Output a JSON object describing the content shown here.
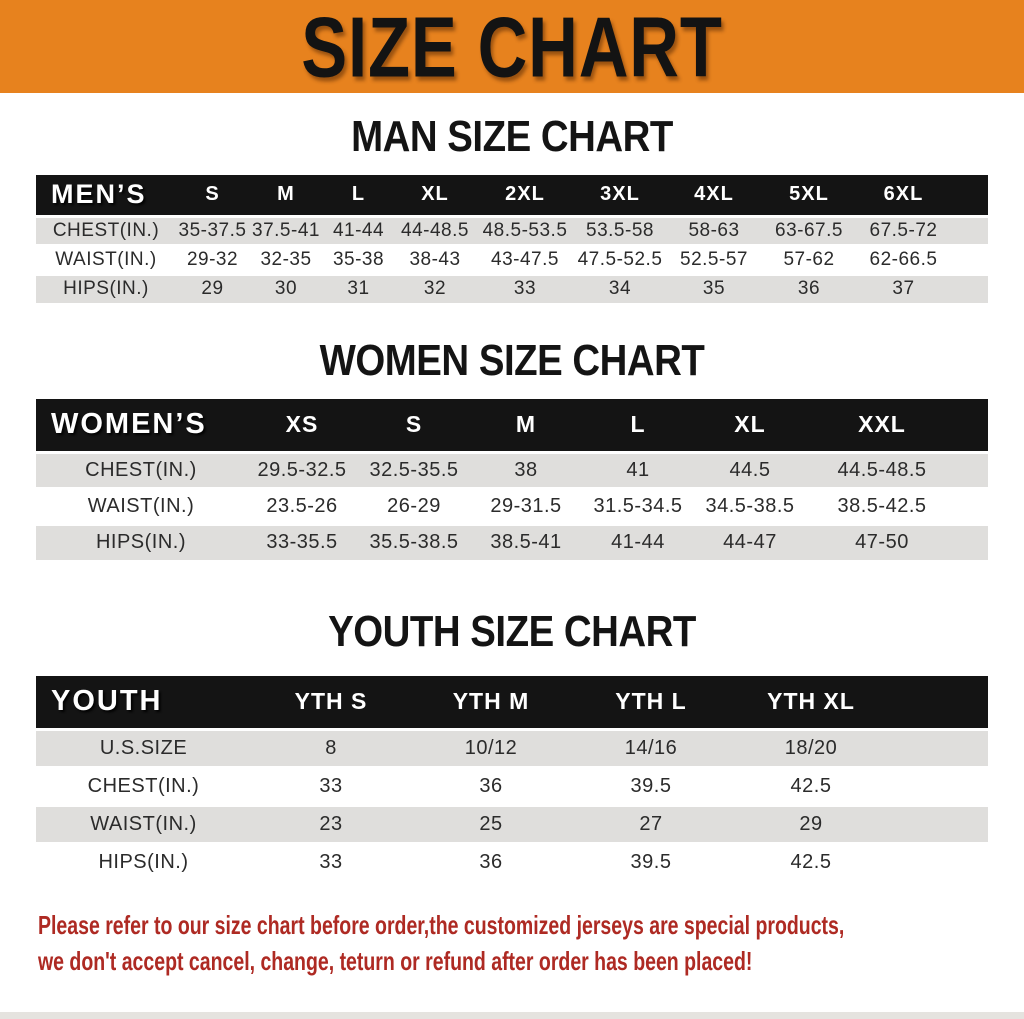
{
  "banner": {
    "title": "SIZE CHART"
  },
  "man": {
    "heading": "MAN SIZE CHART",
    "table": {
      "group_label": "MEN’S",
      "columns": [
        "S",
        "M",
        "L",
        "XL",
        "2XL",
        "3XL",
        "4XL",
        "5XL",
        "6XL"
      ],
      "rows": [
        {
          "label": "CHEST(IN.)",
          "values": [
            "35-37.5",
            "37.5-41",
            "41-44",
            "44-48.5",
            "48.5-53.5",
            "53.5-58",
            "58-63",
            "63-67.5",
            "67.5-72"
          ]
        },
        {
          "label": "WAIST(IN.)",
          "values": [
            "29-32",
            "32-35",
            "35-38",
            "38-43",
            "43-47.5",
            "47.5-52.5",
            "52.5-57",
            "57-62",
            "62-66.5"
          ]
        },
        {
          "label": "HIPS(IN.)",
          "values": [
            "29",
            "30",
            "31",
            "32",
            "33",
            "34",
            "35",
            "36",
            "37"
          ]
        }
      ]
    }
  },
  "women": {
    "heading": "WOMEN SIZE CHART",
    "table": {
      "group_label": "WOMEN’S",
      "columns": [
        "XS",
        "S",
        "M",
        "L",
        "XL",
        "XXL"
      ],
      "rows": [
        {
          "label": "CHEST(IN.)",
          "values": [
            "29.5-32.5",
            "32.5-35.5",
            "38",
            "41",
            "44.5",
            "44.5-48.5"
          ]
        },
        {
          "label": "WAIST(IN.)",
          "values": [
            "23.5-26",
            "26-29",
            "29-31.5",
            "31.5-34.5",
            "34.5-38.5",
            "38.5-42.5"
          ]
        },
        {
          "label": "HIPS(IN.)",
          "values": [
            "33-35.5",
            "35.5-38.5",
            "38.5-41",
            "41-44",
            "44-47",
            "47-50"
          ]
        }
      ]
    }
  },
  "youth": {
    "heading": "YOUTH SIZE CHART",
    "table": {
      "group_label": "YOUTH",
      "columns": [
        "YTH S",
        "YTH M",
        "YTH L",
        "YTH XL"
      ],
      "rows": [
        {
          "label": "U.S.SIZE",
          "values": [
            "8",
            "10/12",
            "14/16",
            "18/20"
          ]
        },
        {
          "label": "CHEST(IN.)",
          "values": [
            "33",
            "36",
            "39.5",
            "42.5"
          ]
        },
        {
          "label": "WAIST(IN.)",
          "values": [
            "23",
            "25",
            "27",
            "29"
          ]
        },
        {
          "label": "HIPS(IN.)",
          "values": [
            "33",
            "36",
            "39.5",
            "42.5"
          ]
        }
      ]
    }
  },
  "footer": {
    "line1": "Please refer to our size chart before order,the customized jerseys are special products,",
    "line2": "we don't accept cancel, change, teturn or refund after order has been placed!"
  },
  "colors": {
    "banner_bg": "#e7821e",
    "table_header_bg": "#141414",
    "row_alt_bg": "#dfdedc",
    "footer_text": "#ae2a23"
  }
}
